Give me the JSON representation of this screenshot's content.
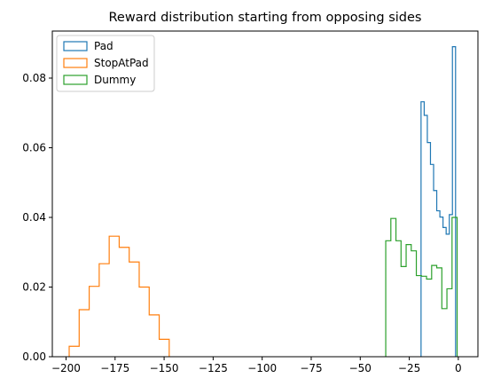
{
  "chart_data": {
    "type": "histogram",
    "title": "Reward distribution starting from opposing sides",
    "xlabel": "",
    "ylabel": "",
    "xlim": [
      -207,
      10
    ],
    "ylim": [
      0,
      0.0935
    ],
    "xticks": [
      -200,
      -175,
      -150,
      -125,
      -100,
      -75,
      -50,
      -25,
      0
    ],
    "xtick_labels": [
      "−200",
      "−175",
      "−150",
      "−125",
      "−100",
      "−75",
      "−50",
      "−25",
      "0"
    ],
    "yticks": [
      0.0,
      0.02,
      0.04,
      0.06,
      0.08
    ],
    "ytick_labels": [
      "0.00",
      "0.02",
      "0.04",
      "0.06",
      "0.08"
    ],
    "grid": false,
    "legend_placement": "top-left",
    "series": [
      {
        "name": "Pad",
        "color": "#1f77b4",
        "edges": [
          -19.0,
          -17.4,
          -15.8,
          -14.2,
          -12.6,
          -11.0,
          -9.4,
          -7.8,
          -6.2,
          -4.6,
          -3.0,
          -1.4
        ],
        "values": [
          0.0732,
          0.0693,
          0.0615,
          0.0552,
          0.0477,
          0.0419,
          0.0401,
          0.0371,
          0.0352,
          0.0408,
          0.089
        ]
      },
      {
        "name": "StopAtPad",
        "color": "#ff7f0e",
        "edges": [
          -198.4,
          -193.3,
          -188.2,
          -183.1,
          -178.0,
          -172.9,
          -167.8,
          -162.7,
          -157.6,
          -152.5,
          -147.4
        ],
        "values": [
          0.003,
          0.0135,
          0.0202,
          0.0267,
          0.0346,
          0.0314,
          0.0272,
          0.02,
          0.012,
          0.005
        ]
      },
      {
        "name": "Dummy",
        "color": "#2ca02c",
        "edges": [
          -37.0,
          -34.4,
          -31.8,
          -29.2,
          -26.6,
          -24.0,
          -21.4,
          -18.8,
          -16.2,
          -13.6,
          -11.0,
          -8.4,
          -5.8,
          -3.2,
          -0.6
        ],
        "values": [
          0.0333,
          0.0397,
          0.0333,
          0.0259,
          0.0322,
          0.0304,
          0.0233,
          0.0231,
          0.0223,
          0.0262,
          0.0255,
          0.0138,
          0.0195,
          0.04
        ]
      }
    ]
  }
}
